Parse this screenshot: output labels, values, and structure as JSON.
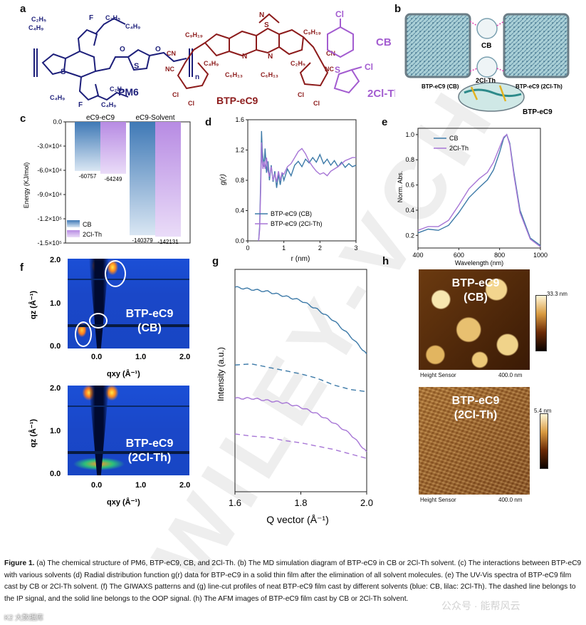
{
  "panels": {
    "a": "a",
    "b": "b",
    "c": "c",
    "d": "d",
    "e": "e",
    "f": "f",
    "g": "g",
    "h": "h"
  },
  "panel_a": {
    "pm6_label": "PM6",
    "btp_label": "BTP-eC9",
    "cb_label": "CB",
    "clth_label": "2Cl-Th",
    "atom_cl": "Cl",
    "atom_s": "S",
    "atom_f": "F",
    "atom_o": "O",
    "atom_n": "N",
    "pm6_subscript_n": "n",
    "c2h5": "C₂H₅",
    "c4h9": "C₄H₉",
    "c9h19": "C₉H₁₉",
    "c6h13": "C₆H₁₃",
    "btp_cn": "CN",
    "btp_nc": "NC"
  },
  "panel_b": {
    "cb": "CB",
    "clth": "2Cl-Th",
    "left_box": "BTP-eC9 (CB)",
    "right_box": "BTP-eC9 (2Cl-Th)",
    "bottom": "BTP-eC9"
  },
  "chart_data": [
    {
      "panel": "c",
      "type": "bar",
      "categories": [
        "eC9-eC9",
        "eC9-Solvent"
      ],
      "series": [
        {
          "name": "CB",
          "values": [
            -60757,
            -140379
          ],
          "color": "#6d9ccb"
        },
        {
          "name": "2Cl-Th",
          "values": [
            -64249,
            -142131
          ],
          "color": "#c9a2e6"
        }
      ],
      "value_labels": [
        "-60757",
        "-64249",
        "-140379",
        "-142131"
      ],
      "ylabel": "Energy (KJ/mol)",
      "ylim": [
        -150000,
        0
      ],
      "yticks": [
        0,
        -30000,
        -60000,
        -90000,
        -120000,
        -150000
      ],
      "ytick_labels": [
        "0.0",
        "-3.0×10⁴",
        "-6.0×10⁴",
        "-9.0×10⁴",
        "-1.2×10⁵",
        "-1.5×10⁵"
      ],
      "legend": [
        "CB",
        "2Cl-Th"
      ]
    },
    {
      "panel": "d",
      "type": "line",
      "xlabel": "r (nm)",
      "ylabel": "g(r)",
      "xlim": [
        0,
        3
      ],
      "ylim": [
        0,
        1.6
      ],
      "xticks": [
        0,
        1,
        2,
        3
      ],
      "yticks": [
        0.0,
        0.4,
        0.8,
        1.2,
        1.6
      ],
      "xtick_labels": [
        "0",
        "1",
        "2",
        "3"
      ],
      "ytick_labels": [
        "0.0",
        "0.4",
        "0.8",
        "1.2",
        "1.6"
      ],
      "series": [
        {
          "name": "BTP-eC9 (CB)",
          "color": "#3d7aa8",
          "x": [
            0.3,
            0.33,
            0.36,
            0.38,
            0.4,
            0.42,
            0.45,
            0.48,
            0.52,
            0.56,
            0.6,
            0.65,
            0.7,
            0.75,
            0.8,
            0.85,
            0.9,
            0.95,
            1.0,
            1.1,
            1.2,
            1.3,
            1.4,
            1.5,
            1.6,
            1.7,
            1.8,
            1.9,
            2.0,
            2.1,
            2.2,
            2.3,
            2.4,
            2.5,
            2.6,
            2.7,
            2.8,
            2.9,
            3.0
          ],
          "y": [
            0.0,
            0.2,
            0.85,
            1.45,
            1.2,
            1.1,
            0.98,
            1.22,
            0.9,
            1.05,
            0.8,
            1.0,
            0.78,
            0.92,
            0.7,
            0.88,
            0.74,
            0.9,
            0.8,
            0.95,
            0.86,
            1.0,
            1.05,
            0.98,
            1.08,
            1.03,
            1.1,
            1.04,
            1.14,
            1.02,
            1.08,
            1.0,
            1.06,
            0.98,
            1.04,
            0.97,
            1.02,
            0.98,
            1.0
          ]
        },
        {
          "name": "BTP-eC9 (2Cl-Th)",
          "color": "#a776d6",
          "x": [
            0.3,
            0.33,
            0.36,
            0.38,
            0.4,
            0.42,
            0.45,
            0.48,
            0.52,
            0.56,
            0.6,
            0.65,
            0.7,
            0.75,
            0.8,
            0.85,
            0.9,
            0.95,
            1.0,
            1.1,
            1.2,
            1.3,
            1.4,
            1.5,
            1.6,
            1.7,
            1.8,
            1.9,
            2.0,
            2.1,
            2.2,
            2.3,
            2.4,
            2.5,
            2.6,
            2.7,
            2.8,
            2.9,
            3.0
          ],
          "y": [
            0.0,
            0.15,
            0.7,
            1.3,
            1.05,
            0.95,
            1.05,
            0.95,
            1.1,
            0.92,
            0.85,
            0.98,
            0.8,
            0.88,
            0.78,
            0.92,
            0.8,
            0.9,
            0.88,
            0.98,
            1.02,
            1.1,
            1.18,
            1.22,
            1.15,
            1.05,
            0.98,
            0.92,
            0.88,
            0.9,
            0.86,
            0.92,
            0.95,
            0.98,
            1.02,
            1.06,
            1.08,
            1.1,
            1.1
          ]
        }
      ],
      "legend": [
        "BTP-eC9 (CB)",
        "BTP-eC9 (2Cl-Th)"
      ]
    },
    {
      "panel": "e",
      "type": "line",
      "xlabel": "Wavelength (nm)",
      "ylabel": "Norm. Abs.",
      "xlim": [
        400,
        1000
      ],
      "ylim": [
        0.1,
        1.05
      ],
      "xticks": [
        400,
        600,
        800,
        1000
      ],
      "yticks": [
        0.2,
        0.4,
        0.6,
        0.8,
        1.0
      ],
      "xtick_labels": [
        "400",
        "600",
        "800",
        "1000"
      ],
      "ytick_labels": [
        "0.2",
        "0.4",
        "0.6",
        "0.8",
        "1.0"
      ],
      "series": [
        {
          "name": "CB",
          "color": "#3d7aa8",
          "x": [
            400,
            450,
            500,
            550,
            600,
            650,
            700,
            740,
            770,
            800,
            820,
            835,
            850,
            870,
            900,
            950,
            1000
          ],
          "y": [
            0.22,
            0.25,
            0.24,
            0.28,
            0.38,
            0.5,
            0.58,
            0.64,
            0.72,
            0.86,
            0.97,
            1.0,
            0.93,
            0.7,
            0.4,
            0.18,
            0.12
          ]
        },
        {
          "name": "2Cl-Th",
          "color": "#a776d6",
          "x": [
            400,
            450,
            500,
            550,
            600,
            650,
            700,
            740,
            770,
            800,
            820,
            835,
            850,
            870,
            900,
            950,
            1000
          ],
          "y": [
            0.24,
            0.27,
            0.27,
            0.32,
            0.44,
            0.57,
            0.65,
            0.7,
            0.78,
            0.9,
            0.98,
            1.0,
            0.92,
            0.68,
            0.38,
            0.17,
            0.11
          ]
        }
      ],
      "legend": [
        "CB",
        "2Cl-Th"
      ]
    },
    {
      "panel": "g",
      "type": "line",
      "xlabel": "Q vector (Å⁻¹)",
      "ylabel": "Intensity (a.u.)",
      "xlim": [
        1.6,
        2.0
      ],
      "xticks": [
        1.6,
        1.8,
        2.0
      ],
      "xtick_labels": [
        "1.6",
        "1.8",
        "2.0"
      ],
      "series": [
        {
          "name": "CB OOP",
          "style": "solid",
          "color": "#3d7aa8",
          "x": [
            1.6,
            1.65,
            1.7,
            1.75,
            1.8,
            1.85,
            1.9,
            1.95,
            2.0
          ],
          "y": [
            0.92,
            0.91,
            0.9,
            0.88,
            0.86,
            0.82,
            0.77,
            0.7,
            0.62
          ]
        },
        {
          "name": "CB IP",
          "style": "dashed",
          "color": "#3d7aa8",
          "x": [
            1.6,
            1.65,
            1.7,
            1.75,
            1.8,
            1.85,
            1.9,
            1.95,
            2.0
          ],
          "y": [
            0.57,
            0.575,
            0.56,
            0.545,
            0.53,
            0.51,
            0.48,
            0.46,
            0.45
          ]
        },
        {
          "name": "2Cl-Th OOP",
          "style": "solid",
          "color": "#a776d6",
          "x": [
            1.6,
            1.65,
            1.7,
            1.75,
            1.8,
            1.85,
            1.9,
            1.95,
            2.0
          ],
          "y": [
            0.42,
            0.42,
            0.41,
            0.4,
            0.38,
            0.35,
            0.31,
            0.26,
            0.18
          ]
        },
        {
          "name": "2Cl-Th IP",
          "style": "dashed",
          "color": "#a776d6",
          "x": [
            1.6,
            1.65,
            1.7,
            1.75,
            1.8,
            1.85,
            1.9,
            1.95,
            2.0
          ],
          "y": [
            0.26,
            0.25,
            0.245,
            0.23,
            0.22,
            0.205,
            0.19,
            0.17,
            0.15
          ]
        }
      ]
    }
  ],
  "panel_f": {
    "top_label_1": "BTP-eC9",
    "top_label_2": "(CB)",
    "bottom_label_1": "BTP-eC9",
    "bottom_label_2": "(2Cl-Th)",
    "qz_label": "qz (Å⁻¹)",
    "qxy_label": "qxy (Å⁻¹)",
    "yticks": [
      "2.0",
      "1.0",
      "0.0"
    ],
    "xticks": [
      "0.0",
      "1.0",
      "2.0"
    ]
  },
  "panel_h": {
    "top_label_1": "BTP-eC9",
    "top_label_2": "(CB)",
    "top_scale": "33.3 nm",
    "top_sensor": "Height Sensor",
    "top_size": "400.0 nm",
    "bottom_label_1": "BTP-eC9",
    "bottom_label_2": "(2Cl-Th)",
    "bottom_scale": "5.4 nm",
    "bottom_sensor": "Height Sensor",
    "bottom_size": "400.0 nm"
  },
  "caption": {
    "bold": "Figure 1.",
    "text": " (a) The chemical structure of PM6, BTP-eC9, CB, and 2Cl-Th. (b) The MD simulation diagram of BTP-eC9 in CB or 2Cl-Th solvent. (c) The interactions between BTP-eC9 with various solvents (d) Radial distribution function g(r) data for BTP-eC9 in a solid thin film after the elimination of all solvent molecules. (e) The UV-Vis spectra of BTP-eC9 film cast by CB or 2Cl-Th solvent. (f) The GIWAXS patterns and (g) line-cut profiles of neat BTP-eC9 film cast by different solvents (blue: CB, lilac: 2Cl-Th). The dashed line belongs to the IP signal, and the solid line belongs to the OOP signal. (h) The AFM images of BTP-eC9 film cast by CB or 2Cl-Th solvent."
  },
  "watermark": {
    "text": "WILEY-VCH"
  },
  "overlays": {
    "corner": "K2 大数据库",
    "wechat": "公众号 · 能帮风云"
  }
}
